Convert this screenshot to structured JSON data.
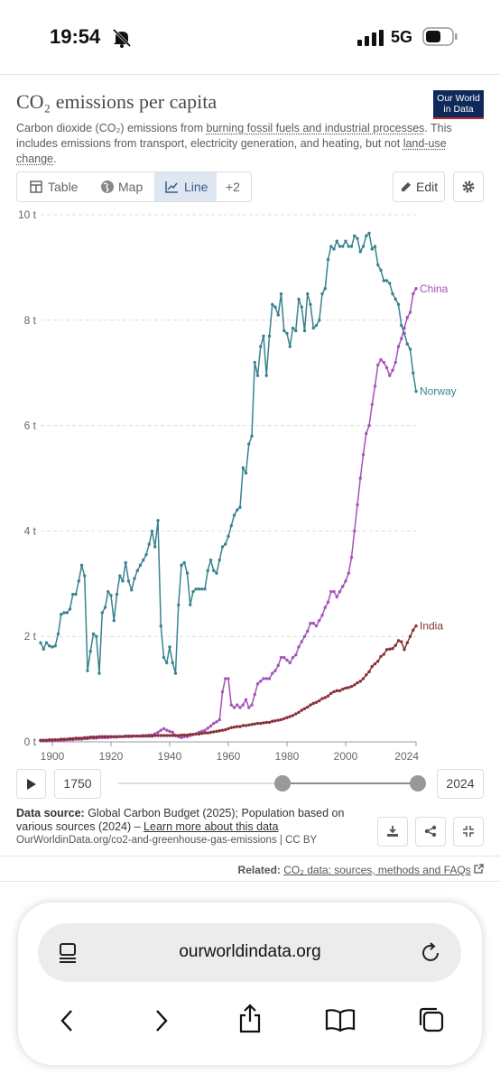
{
  "status": {
    "time": "19:54",
    "network": "5G"
  },
  "header": {
    "title": "CO₂ emissions per capita",
    "logo": [
      "Our World",
      "in Data"
    ],
    "subtitle": [
      "Carbon dioxide (CO₂) emissions from ",
      "burning fossil fuels and industrial processes",
      ". This includes emissions from transport, electricity generation, and heating, but not ",
      "land-use change",
      "."
    ]
  },
  "tabs": [
    "Table",
    "Map",
    "Line",
    "+2"
  ],
  "edit": "Edit",
  "chart_data": {
    "type": "line",
    "x": [
      1896,
      1897,
      1898,
      1899,
      1900,
      1901,
      1902,
      1903,
      1904,
      1905,
      1906,
      1907,
      1908,
      1909,
      1910,
      1911,
      1912,
      1913,
      1914,
      1915,
      1916,
      1917,
      1918,
      1919,
      1920,
      1921,
      1922,
      1923,
      1924,
      1925,
      1926,
      1927,
      1928,
      1929,
      1930,
      1931,
      1932,
      1933,
      1934,
      1935,
      1936,
      1937,
      1938,
      1939,
      1940,
      1941,
      1942,
      1943,
      1944,
      1945,
      1946,
      1947,
      1948,
      1949,
      1950,
      1951,
      1952,
      1953,
      1954,
      1955,
      1956,
      1957,
      1958,
      1959,
      1960,
      1961,
      1962,
      1963,
      1964,
      1965,
      1966,
      1967,
      1968,
      1969,
      1970,
      1971,
      1972,
      1973,
      1974,
      1975,
      1976,
      1977,
      1978,
      1979,
      1980,
      1981,
      1982,
      1983,
      1984,
      1985,
      1986,
      1987,
      1988,
      1989,
      1990,
      1991,
      1992,
      1993,
      1994,
      1995,
      1996,
      1997,
      1998,
      1999,
      2000,
      2001,
      2002,
      2003,
      2004,
      2005,
      2006,
      2007,
      2008,
      2009,
      2010,
      2011,
      2012,
      2013,
      2014,
      2015,
      2016,
      2017,
      2018,
      2019,
      2020,
      2021,
      2022,
      2023,
      2024
    ],
    "series": [
      {
        "name": "Norway",
        "color": "#38838f",
        "values": [
          1.88,
          1.76,
          1.88,
          1.82,
          1.8,
          1.82,
          2.05,
          2.42,
          2.45,
          2.45,
          2.52,
          2.8,
          2.8,
          3.05,
          3.35,
          3.15,
          1.35,
          1.72,
          2.05,
          2.0,
          1.3,
          2.45,
          2.55,
          2.85,
          2.78,
          2.3,
          2.8,
          3.15,
          3.05,
          3.4,
          3.05,
          2.88,
          3.1,
          3.25,
          3.35,
          3.45,
          3.55,
          3.75,
          4.0,
          3.7,
          4.2,
          2.2,
          1.6,
          1.5,
          1.8,
          1.5,
          1.3,
          2.6,
          3.35,
          3.4,
          3.2,
          2.6,
          2.85,
          2.9,
          2.9,
          2.9,
          2.9,
          3.25,
          3.45,
          3.25,
          3.2,
          3.45,
          3.7,
          3.75,
          3.9,
          4.1,
          4.3,
          4.4,
          4.45,
          5.2,
          5.1,
          5.65,
          5.8,
          7.2,
          6.95,
          7.5,
          7.7,
          6.95,
          7.7,
          8.3,
          8.25,
          8.1,
          8.5,
          7.8,
          7.75,
          7.5,
          7.85,
          7.8,
          8.4,
          8.25,
          7.8,
          8.5,
          8.3,
          7.85,
          7.9,
          8.0,
          8.5,
          8.6,
          9.15,
          9.4,
          9.35,
          9.5,
          9.4,
          9.4,
          9.5,
          9.4,
          9.4,
          9.6,
          9.55,
          9.3,
          9.4,
          9.6,
          9.65,
          9.35,
          9.4,
          9.05,
          8.95,
          8.75,
          8.75,
          8.7,
          8.5,
          8.4,
          8.3,
          7.9,
          7.75,
          7.55,
          7.45,
          7.0,
          6.65
        ]
      },
      {
        "name": "China",
        "color": "#a652ba",
        "values": [
          0.02,
          0.02,
          0.02,
          0.02,
          0.02,
          0.03,
          0.03,
          0.03,
          0.03,
          0.04,
          0.04,
          0.04,
          0.05,
          0.05,
          0.05,
          0.06,
          0.06,
          0.07,
          0.07,
          0.07,
          0.08,
          0.08,
          0.08,
          0.08,
          0.09,
          0.09,
          0.09,
          0.1,
          0.1,
          0.1,
          0.1,
          0.1,
          0.11,
          0.11,
          0.11,
          0.12,
          0.12,
          0.13,
          0.13,
          0.15,
          0.18,
          0.22,
          0.25,
          0.22,
          0.2,
          0.18,
          0.12,
          0.1,
          0.08,
          0.1,
          0.1,
          0.12,
          0.14,
          0.15,
          0.18,
          0.2,
          0.22,
          0.26,
          0.3,
          0.35,
          0.38,
          0.42,
          0.95,
          1.2,
          1.2,
          0.7,
          0.65,
          0.7,
          0.65,
          0.7,
          0.8,
          0.65,
          0.7,
          0.9,
          1.1,
          1.15,
          1.2,
          1.2,
          1.2,
          1.3,
          1.35,
          1.45,
          1.6,
          1.6,
          1.55,
          1.5,
          1.6,
          1.65,
          1.8,
          1.9,
          2.0,
          2.1,
          2.25,
          2.25,
          2.2,
          2.3,
          2.4,
          2.55,
          2.65,
          2.85,
          2.85,
          2.75,
          2.85,
          2.95,
          3.05,
          3.2,
          3.5,
          4.0,
          4.5,
          5.0,
          5.45,
          5.85,
          6.0,
          6.4,
          6.75,
          7.15,
          7.25,
          7.2,
          7.1,
          6.95,
          7.05,
          7.2,
          7.5,
          7.65,
          7.85,
          8.05,
          8.15,
          8.5,
          8.6
        ]
      },
      {
        "name": "India",
        "color": "#883039",
        "values": [
          0.03,
          0.03,
          0.03,
          0.04,
          0.04,
          0.04,
          0.04,
          0.05,
          0.05,
          0.05,
          0.06,
          0.06,
          0.07,
          0.07,
          0.07,
          0.08,
          0.08,
          0.09,
          0.09,
          0.09,
          0.1,
          0.1,
          0.1,
          0.1,
          0.1,
          0.1,
          0.1,
          0.1,
          0.1,
          0.11,
          0.11,
          0.11,
          0.11,
          0.11,
          0.11,
          0.11,
          0.11,
          0.11,
          0.11,
          0.12,
          0.12,
          0.12,
          0.12,
          0.12,
          0.12,
          0.12,
          0.12,
          0.12,
          0.13,
          0.13,
          0.13,
          0.14,
          0.14,
          0.15,
          0.15,
          0.16,
          0.17,
          0.17,
          0.18,
          0.19,
          0.2,
          0.21,
          0.22,
          0.23,
          0.25,
          0.27,
          0.28,
          0.29,
          0.29,
          0.31,
          0.31,
          0.32,
          0.33,
          0.34,
          0.35,
          0.35,
          0.36,
          0.37,
          0.37,
          0.39,
          0.4,
          0.41,
          0.42,
          0.44,
          0.46,
          0.48,
          0.5,
          0.53,
          0.56,
          0.6,
          0.63,
          0.66,
          0.7,
          0.73,
          0.75,
          0.78,
          0.82,
          0.84,
          0.87,
          0.92,
          0.95,
          0.97,
          0.97,
          1.0,
          1.02,
          1.03,
          1.05,
          1.08,
          1.12,
          1.15,
          1.2,
          1.27,
          1.33,
          1.43,
          1.48,
          1.53,
          1.62,
          1.66,
          1.75,
          1.76,
          1.77,
          1.83,
          1.92,
          1.9,
          1.75,
          1.88,
          2.0,
          2.12,
          2.2
        ]
      }
    ],
    "xlim": [
      1896,
      2024
    ],
    "xticks": [
      1900,
      1920,
      1940,
      1960,
      1980,
      2000,
      2024
    ],
    "ylim": [
      0,
      10
    ],
    "yticks": [
      {
        "value": 0,
        "label": "0 t"
      },
      {
        "value": 2,
        "label": "2 t"
      },
      {
        "value": 4,
        "label": "4 t"
      },
      {
        "value": 6,
        "label": "6 t"
      },
      {
        "value": 8,
        "label": "8 t"
      },
      {
        "value": 10,
        "label": "10 t"
      }
    ],
    "grid": true
  },
  "timeline": {
    "start": "1750",
    "end": "2024"
  },
  "footer": {
    "source_label": "Data source:",
    "source": " Global Carbon Budget (2025); Population based on various sources (2024) – ",
    "learn_more": "Learn more about this data",
    "url": "OurWorldinData.org/co2-and-greenhouse-gas-emissions | CC BY",
    "related_label": "Related:",
    "related": "CO₂ data: sources, methods and FAQs"
  },
  "browser": {
    "url": "ourworldindata.org"
  }
}
